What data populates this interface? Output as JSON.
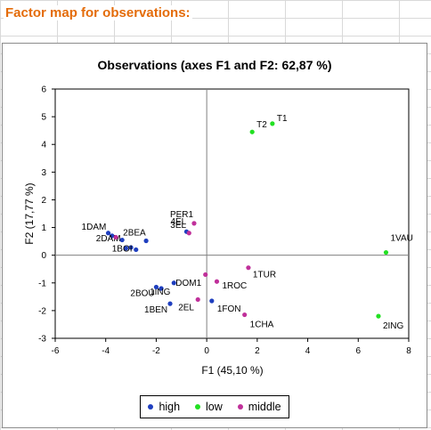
{
  "sheet": {
    "heading": "Factor map for observations:"
  },
  "colors": {
    "high": "#1f3fbf",
    "low": "#22e022",
    "middle": "#c0309a",
    "heading": "#e46c0a"
  },
  "chart_data": {
    "type": "scatter",
    "title": "Observations (axes F1 and F2: 62,87 %)",
    "xlabel": "F1 (45,10 %)",
    "ylabel": "F2 (17,77 %)",
    "xlim": [
      -6,
      8
    ],
    "ylim": [
      -3,
      6
    ],
    "xticks": [
      "-6",
      "-4",
      "-2",
      "0",
      "2",
      "4",
      "6",
      "8"
    ],
    "yticks": [
      "-3",
      "-2",
      "-1",
      "0",
      "1",
      "2",
      "3",
      "4",
      "5",
      "6"
    ],
    "legend_position": "bottom",
    "series": [
      {
        "name": "high",
        "color": "high",
        "points": [
          {
            "label": "1DAM",
            "x": -3.9,
            "y": 0.8
          },
          {
            "label": "2DAM",
            "x": -3.75,
            "y": 0.7
          },
          {
            "label": "2BEA",
            "x": -3.35,
            "y": 0.55
          },
          {
            "label": "",
            "x": -3.2,
            "y": 0.25
          },
          {
            "label": "",
            "x": -3.0,
            "y": 0.28
          },
          {
            "label": "1BOI",
            "x": -2.8,
            "y": 0.2
          },
          {
            "label": "",
            "x": -2.4,
            "y": 0.52
          },
          {
            "label": "4EL",
            "x": -0.8,
            "y": 0.85
          },
          {
            "label": "DOM1",
            "x": -1.3,
            "y": -1.0
          },
          {
            "label": "1ING",
            "x": -1.8,
            "y": -1.2
          },
          {
            "label": "2BOU",
            "x": -2.0,
            "y": -1.15
          },
          {
            "label": "1BEN",
            "x": -1.45,
            "y": -1.75
          },
          {
            "label": "1FON",
            "x": 0.2,
            "y": -1.65
          }
        ]
      },
      {
        "name": "low",
        "color": "low",
        "points": [
          {
            "label": "T1",
            "x": 2.6,
            "y": 4.75
          },
          {
            "label": "T2",
            "x": 1.8,
            "y": 4.45
          },
          {
            "label": "1VAU",
            "x": 7.1,
            "y": 0.1
          },
          {
            "label": "2ING",
            "x": 6.8,
            "y": -2.2
          }
        ]
      },
      {
        "name": "middle",
        "color": "middle",
        "points": [
          {
            "label": "PER1",
            "x": -0.5,
            "y": 1.15
          },
          {
            "label": "3EL",
            "x": -0.7,
            "y": 0.8
          },
          {
            "label": "",
            "x": -3.6,
            "y": 0.65
          },
          {
            "label": "1TUR",
            "x": 1.65,
            "y": -0.45
          },
          {
            "label": "",
            "x": -0.05,
            "y": -0.7
          },
          {
            "label": "1ROC",
            "x": 0.4,
            "y": -0.95
          },
          {
            "label": "2EL",
            "x": -0.35,
            "y": -1.6
          },
          {
            "label": "1CHA",
            "x": 1.5,
            "y": -2.15
          }
        ]
      }
    ]
  }
}
